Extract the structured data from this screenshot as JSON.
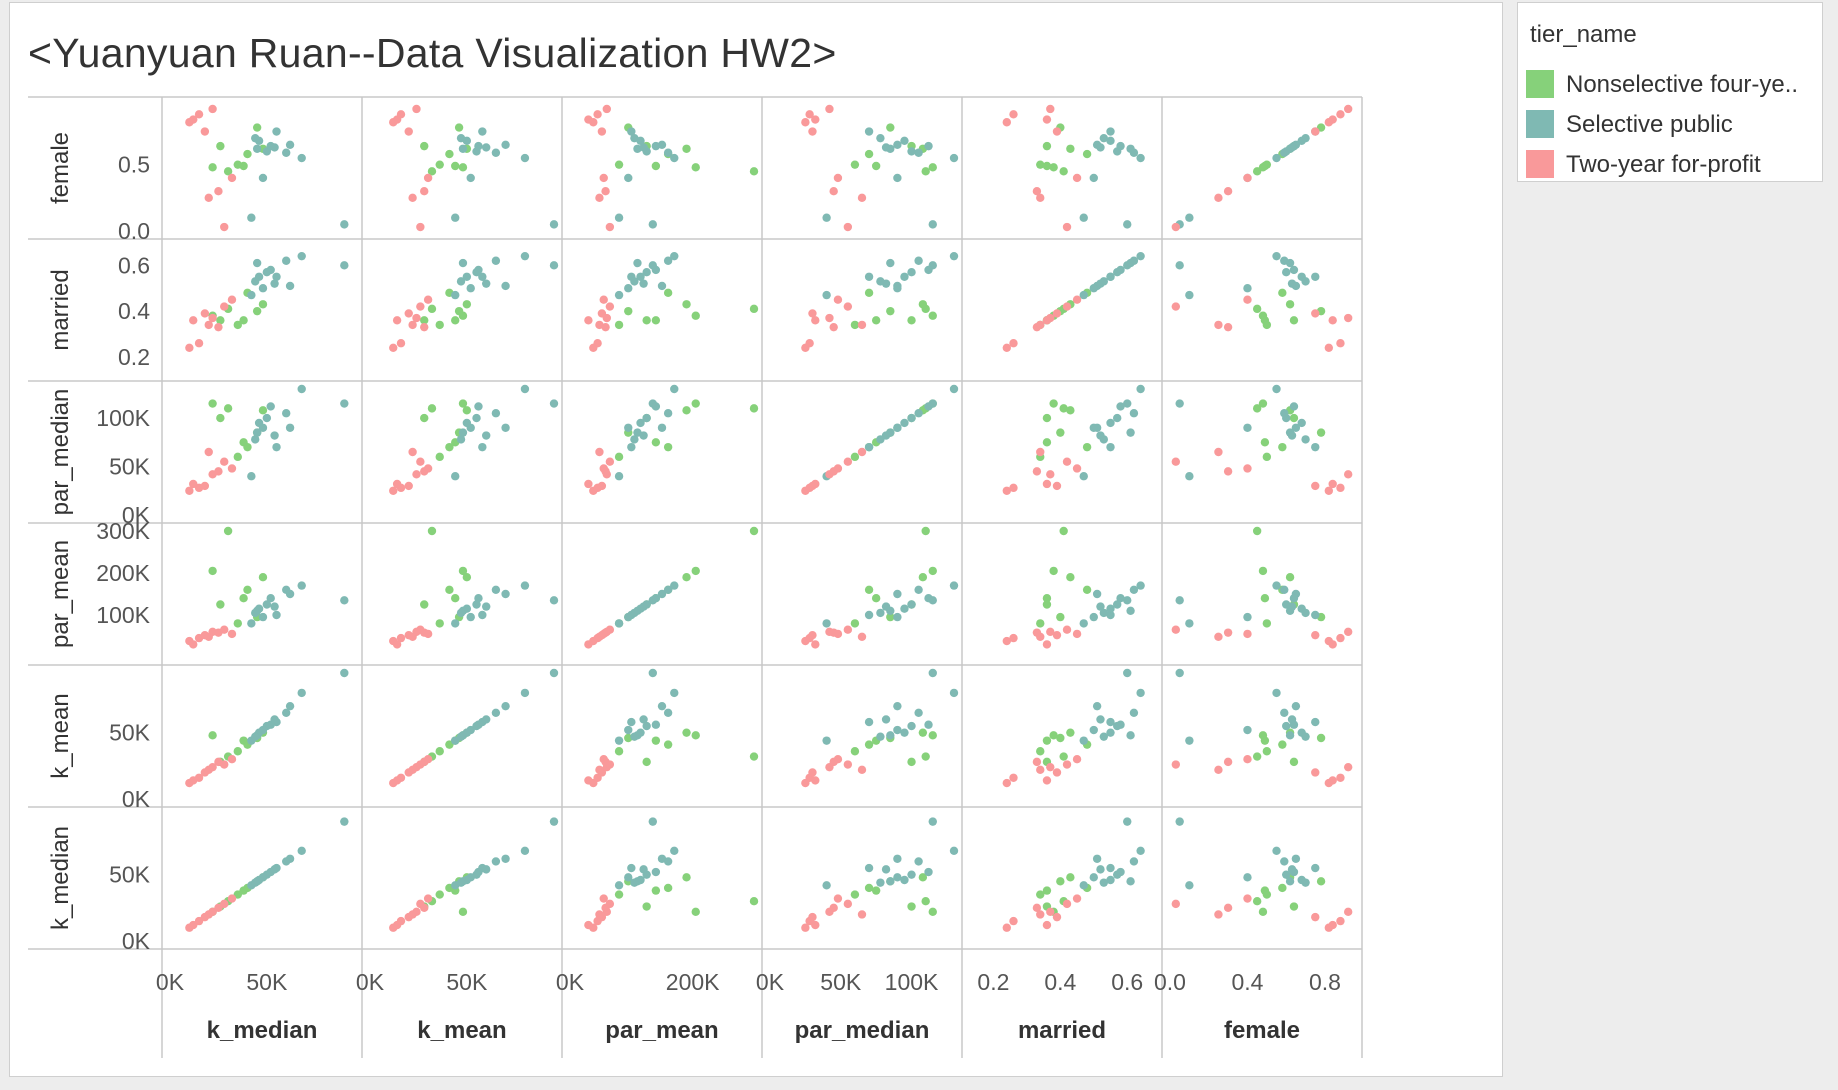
{
  "title": "<Yuanyuan Ruan--Data Visualization HW2>",
  "legend": {
    "title": "tier_name",
    "items": [
      {
        "label": "Nonselective four-ye..",
        "color": "#86d17a"
      },
      {
        "label": "Selective public",
        "color": "#7fb9b3"
      },
      {
        "label": "Two-year for-profit",
        "color": "#f9999a"
      }
    ]
  },
  "chart_data": {
    "type": "scatter",
    "subtype": "scatter-matrix",
    "variables": [
      {
        "key": "k_median",
        "label": "k_median",
        "range": [
          0,
          95000
        ],
        "ticks": [
          {
            "v": 0,
            "label": "0K"
          },
          {
            "v": 50000,
            "label": "50K"
          }
        ]
      },
      {
        "key": "k_mean",
        "label": "k_mean",
        "range": [
          0,
          95000
        ],
        "ticks": [
          {
            "v": 0,
            "label": "0K"
          },
          {
            "v": 50000,
            "label": "50K"
          }
        ]
      },
      {
        "key": "par_mean",
        "label": "par_mean",
        "range": [
          0,
          300000
        ],
        "ticks": [
          {
            "v": 0,
            "label": "0K"
          },
          {
            "v": 100000,
            "label": "100K"
          },
          {
            "v": 200000,
            "label": "200K"
          },
          {
            "v": 300000,
            "label": "300K"
          }
        ]
      },
      {
        "key": "par_median",
        "label": "par_median",
        "range": [
          0,
          130000
        ],
        "ticks": [
          {
            "v": 0,
            "label": "0K"
          },
          {
            "v": 50000,
            "label": "50K"
          },
          {
            "v": 100000,
            "label": "100K"
          }
        ]
      },
      {
        "key": "married",
        "label": "married",
        "range": [
          0.13,
          0.68
        ],
        "ticks": [
          {
            "v": 0.2,
            "label": "0.2"
          },
          {
            "v": 0.4,
            "label": "0.4"
          },
          {
            "v": 0.6,
            "label": "0.6"
          }
        ]
      },
      {
        "key": "female",
        "label": "female",
        "range": [
          0,
          0.95
        ],
        "ticks": [
          {
            "v": 0.0,
            "label": "0.0"
          },
          {
            "v": 0.4,
            "label": "0.4"
          },
          {
            "v": 0.5,
            "label": "0.5"
          },
          {
            "v": 0.8,
            "label": "0.8"
          }
        ]
      }
    ],
    "row_order": [
      "female",
      "married",
      "par_median",
      "par_mean",
      "k_mean",
      "k_median"
    ],
    "col_order": [
      "k_median",
      "k_mean",
      "par_mean",
      "par_median",
      "married",
      "female"
    ],
    "row_tick_values": {
      "female": [
        0.0,
        0.5
      ],
      "married": [
        0.2,
        0.4,
        0.6
      ],
      "par_median": [
        0,
        50000,
        100000
      ],
      "par_mean": [
        100000,
        200000,
        300000
      ],
      "k_mean": [
        0,
        50000
      ],
      "k_median": [
        0,
        50000
      ]
    },
    "col_tick_values": {
      "k_median": [
        0,
        50000
      ],
      "k_mean": [
        0,
        50000
      ],
      "par_mean": [
        0,
        200000
      ],
      "par_median": [
        0,
        50000,
        100000
      ],
      "married": [
        0.2,
        0.4,
        0.6
      ],
      "female": [
        0.0,
        0.4,
        0.8
      ]
    },
    "series": [
      {
        "name": "Nonselective four-ye..",
        "color": "#86d17a",
        "points": [
          {
            "k_median": 30000,
            "k_mean": 32000,
            "par_mean": 300000,
            "par_median": 110000,
            "married": 0.41,
            "female": 0.45
          },
          {
            "k_median": 22000,
            "k_mean": 48000,
            "par_mean": 205000,
            "par_median": 115000,
            "married": 0.38,
            "female": 0.48
          },
          {
            "k_median": 38000,
            "k_mean": 44000,
            "par_mean": 140000,
            "par_median": 75000,
            "married": 0.36,
            "female": 0.49
          },
          {
            "k_median": 48000,
            "k_mean": 50000,
            "par_mean": 190000,
            "par_median": 108000,
            "married": 0.43,
            "female": 0.62
          },
          {
            "k_median": 26000,
            "k_mean": 28000,
            "par_mean": 125000,
            "par_median": 100000,
            "married": 0.36,
            "female": 0.64
          },
          {
            "k_median": 45000,
            "k_mean": 46000,
            "par_mean": 95000,
            "par_median": 85000,
            "married": 0.4,
            "female": 0.78
          },
          {
            "k_median": 40000,
            "k_mean": 41000,
            "par_mean": 160000,
            "par_median": 70000,
            "married": 0.48,
            "female": 0.58
          },
          {
            "k_median": 35000,
            "k_mean": 36000,
            "par_mean": 80000,
            "par_median": 60000,
            "married": 0.34,
            "female": 0.5
          }
        ]
      },
      {
        "name": "Selective public",
        "color": "#7fb9b3",
        "points": [
          {
            "k_median": 90000,
            "k_mean": 95000,
            "par_mean": 135000,
            "par_median": 115000,
            "married": 0.6,
            "female": 0.05
          },
          {
            "k_median": 55000,
            "k_mean": 58000,
            "par_mean": 100000,
            "par_median": 70000,
            "married": 0.55,
            "female": 0.75
          },
          {
            "k_median": 62000,
            "k_mean": 70000,
            "par_mean": 150000,
            "par_median": 90000,
            "married": 0.51,
            "female": 0.65
          },
          {
            "k_median": 68000,
            "k_mean": 80000,
            "par_mean": 170000,
            "par_median": 130000,
            "married": 0.64,
            "female": 0.55
          },
          {
            "k_median": 50000,
            "k_mean": 55000,
            "par_mean": 125000,
            "par_median": 100000,
            "married": 0.57,
            "female": 0.6
          },
          {
            "k_median": 48000,
            "k_mean": 52000,
            "par_mean": 95000,
            "par_median": 90000,
            "married": 0.5,
            "female": 0.4
          },
          {
            "k_median": 45000,
            "k_mean": 48000,
            "par_mean": 110000,
            "par_median": 85000,
            "married": 0.61,
            "female": 0.62
          },
          {
            "k_median": 52000,
            "k_mean": 56000,
            "par_mean": 140000,
            "par_median": 112000,
            "married": 0.58,
            "female": 0.64
          },
          {
            "k_median": 42000,
            "k_mean": 44000,
            "par_mean": 80000,
            "par_median": 40000,
            "married": 0.47,
            "female": 0.1
          },
          {
            "k_median": 46000,
            "k_mean": 50000,
            "par_mean": 115000,
            "par_median": 95000,
            "married": 0.55,
            "female": 0.68
          },
          {
            "k_median": 54000,
            "k_mean": 60000,
            "par_mean": 120000,
            "par_median": 82000,
            "married": 0.52,
            "female": 0.63
          },
          {
            "k_median": 44000,
            "k_mean": 47000,
            "par_mean": 105000,
            "par_median": 78000,
            "married": 0.53,
            "female": 0.7
          },
          {
            "k_median": 60000,
            "k_mean": 65000,
            "par_mean": 160000,
            "par_median": 105000,
            "married": 0.62,
            "female": 0.59
          }
        ]
      },
      {
        "name": "Two-year for-profit",
        "color": "#f9999a",
        "points": [
          {
            "k_median": 10000,
            "k_mean": 12000,
            "par_mean": 38000,
            "par_median": 25000,
            "married": 0.24,
            "female": 0.82
          },
          {
            "k_median": 15000,
            "k_mean": 16000,
            "par_mean": 45000,
            "par_median": 28000,
            "married": 0.26,
            "female": 0.88
          },
          {
            "k_median": 18000,
            "k_mean": 20000,
            "par_mean": 52000,
            "par_median": 30000,
            "married": 0.39,
            "female": 0.75
          },
          {
            "k_median": 12000,
            "k_mean": 14000,
            "par_mean": 30000,
            "par_median": 32000,
            "married": 0.36,
            "female": 0.84
          },
          {
            "k_median": 22000,
            "k_mean": 24000,
            "par_mean": 60000,
            "par_median": 42000,
            "married": 0.37,
            "female": 0.92
          },
          {
            "k_median": 28000,
            "k_mean": 26000,
            "par_mean": 65000,
            "par_median": 55000,
            "married": 0.42,
            "female": 0.03
          },
          {
            "k_median": 25000,
            "k_mean": 28000,
            "par_mean": 58000,
            "par_median": 45000,
            "married": 0.33,
            "female": 0.3
          },
          {
            "k_median": 20000,
            "k_mean": 22000,
            "par_mean": 48000,
            "par_median": 65000,
            "married": 0.34,
            "female": 0.25
          },
          {
            "k_median": 32000,
            "k_mean": 30000,
            "par_mean": 55000,
            "par_median": 48000,
            "married": 0.45,
            "female": 0.4
          }
        ]
      }
    ],
    "grid": false,
    "legend_position": "top-right"
  }
}
